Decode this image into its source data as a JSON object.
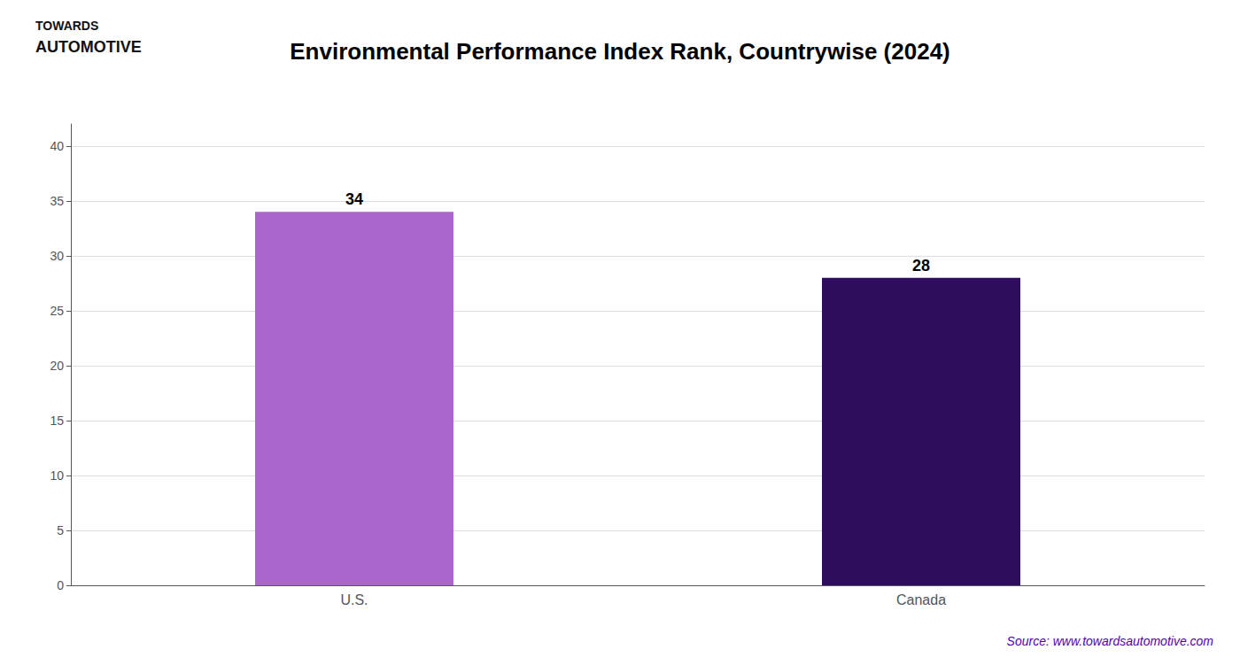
{
  "chart_data": {
    "type": "bar",
    "title": "Environmental Performance Index Rank, Countrywise (2024)",
    "categories": [
      "U.S.",
      "Canada"
    ],
    "values": [
      34,
      28
    ],
    "colors": [
      "#aa66cc",
      "#2e0d5e"
    ],
    "ylim": [
      0,
      42
    ],
    "yticks": [
      0,
      5,
      10,
      15,
      20,
      25,
      30,
      35,
      40
    ],
    "grid": true,
    "data_labels": true,
    "annotations": [
      "TOWARDS",
      "AUTOMOTIVE",
      "Source: www.towardsautomotive.com"
    ]
  }
}
